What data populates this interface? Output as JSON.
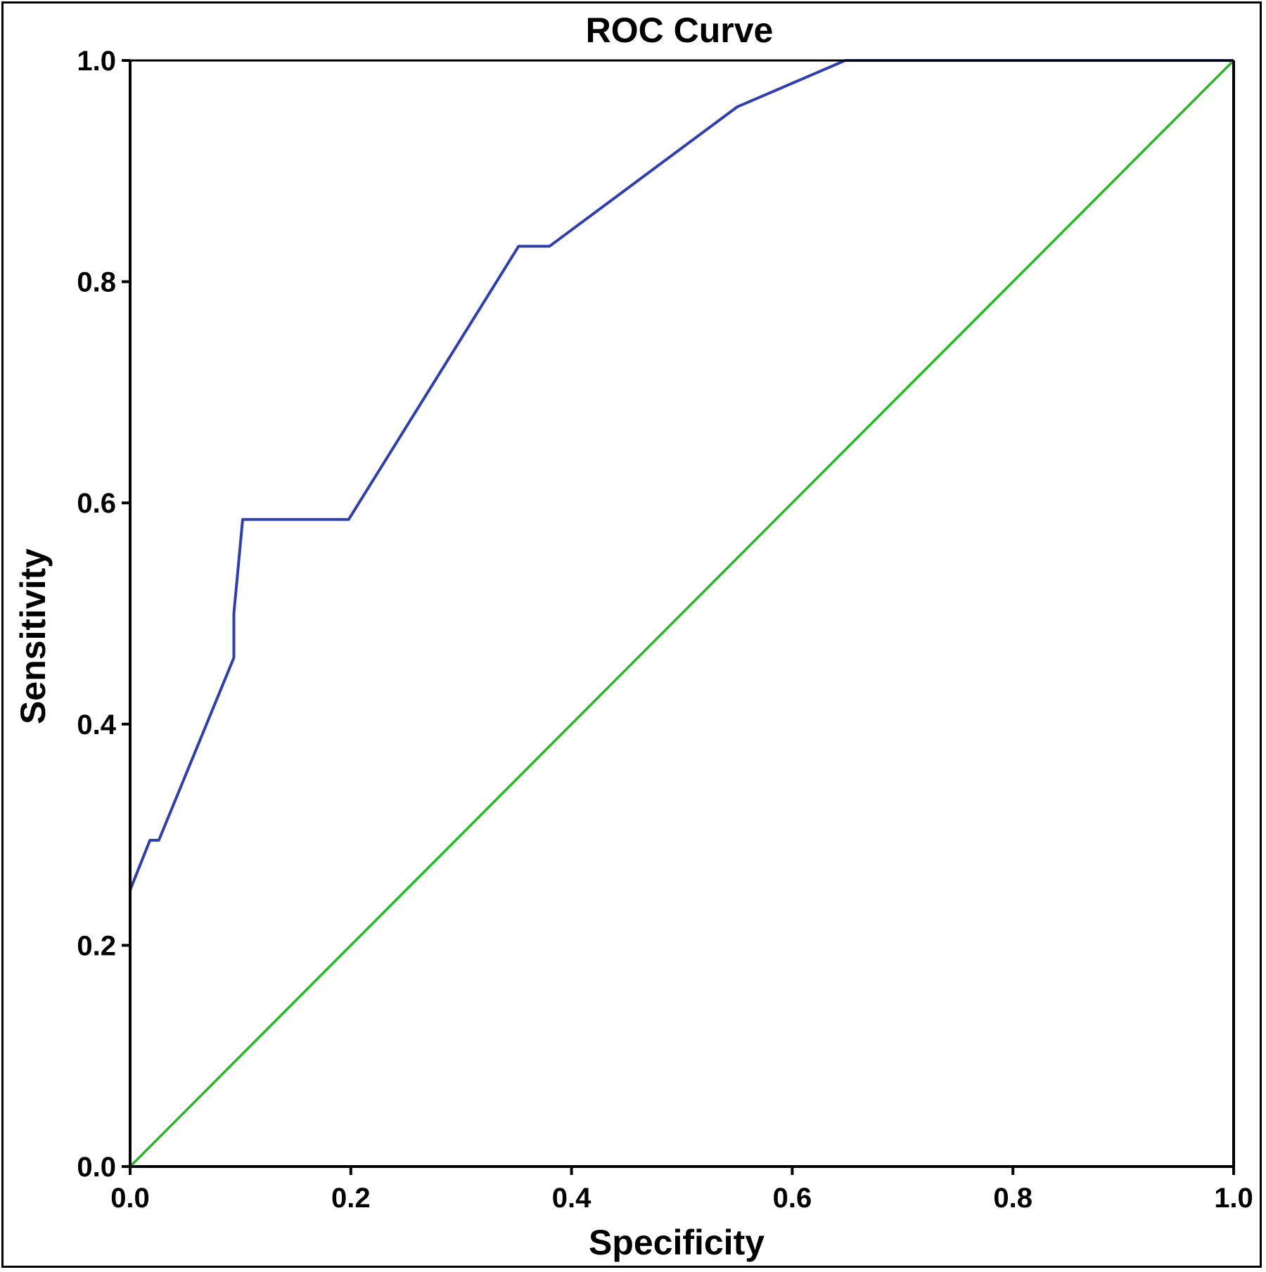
{
  "chart_data": {
    "type": "line",
    "title": "ROC Curve",
    "xlabel": "Specificity",
    "ylabel": "Sensitivity",
    "xlim": [
      0.0,
      1.0
    ],
    "ylim": [
      0.0,
      1.0
    ],
    "grid": false,
    "x_ticks": [
      "0.0",
      "0.2",
      "0.4",
      "0.6",
      "0.8",
      "1.0"
    ],
    "y_ticks": [
      "0.0",
      "0.2",
      "0.4",
      "0.6",
      "0.8",
      "1.0"
    ],
    "colors": {
      "roc_curve": "#2e3fb0",
      "reference_line": "#22bb22",
      "axes": "#000000"
    },
    "series": [
      {
        "x": [
          0.0,
          0.018,
          0.026,
          0.094,
          0.094,
          0.102,
          0.198,
          0.352,
          0.38,
          0.55,
          0.648,
          1.0
        ],
        "y": [
          0.25,
          0.295,
          0.295,
          0.46,
          0.5,
          0.585,
          0.585,
          0.832,
          0.832,
          0.958,
          1.0,
          1.0
        ]
      },
      {
        "x": [
          0.0,
          1.0
        ],
        "y": [
          0.0,
          1.0
        ]
      }
    ]
  }
}
